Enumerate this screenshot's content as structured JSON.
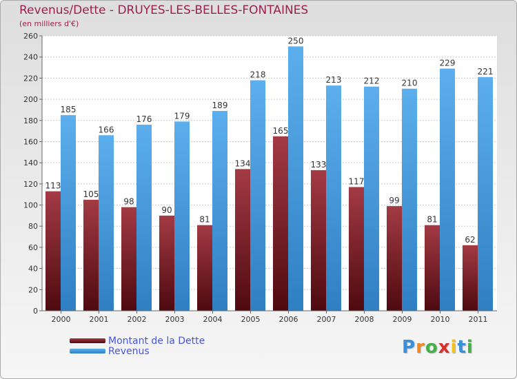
{
  "chart_data": {
    "type": "bar",
    "title": "Revenus/Dette - DRUYES-LES-BELLES-FONTAINES",
    "subtitle": "(en milliers d'€)",
    "categories": [
      "2000",
      "2001",
      "2002",
      "2003",
      "2004",
      "2005",
      "2006",
      "2007",
      "2008",
      "2009",
      "2010",
      "2011"
    ],
    "series": [
      {
        "name": "Montant de la Dette",
        "color": "#7a1f28",
        "values": [
          113,
          105,
          98,
          90,
          81,
          134,
          165,
          133,
          117,
          99,
          81,
          62
        ]
      },
      {
        "name": "Revenus",
        "color": "#4a9fe0",
        "values": [
          185,
          166,
          176,
          179,
          189,
          218,
          250,
          213,
          212,
          210,
          229,
          221
        ]
      }
    ],
    "ylim": [
      0,
      260
    ],
    "yticks": [
      0,
      20,
      40,
      60,
      80,
      100,
      120,
      140,
      160,
      180,
      200,
      220,
      240,
      260
    ],
    "grid": true,
    "legend_position": "bottom-left"
  },
  "logo": {
    "letters": [
      "P",
      "r",
      "o",
      "x",
      "i",
      "t",
      "i"
    ],
    "colors": [
      "#3a8fd9",
      "#f08a1c",
      "#43b04a",
      "#d8302a",
      "#f3c21c",
      "#3a8fd9",
      "#43b04a"
    ]
  }
}
